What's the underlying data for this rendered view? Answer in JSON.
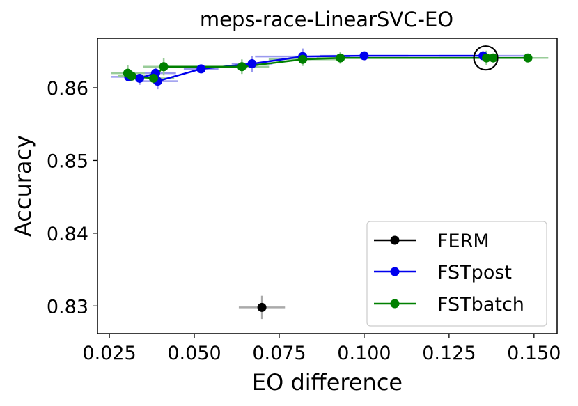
{
  "chart_data": {
    "type": "line",
    "title": "meps-race-LinearSVC-EO",
    "xlabel": "EO difference",
    "ylabel": "Accuracy",
    "xlim": [
      0.0215,
      0.1568
    ],
    "ylim": [
      0.8262,
      0.8668
    ],
    "xticks": [
      0.025,
      0.05,
      0.075,
      0.1,
      0.125,
      0.15
    ],
    "xtick_labels": [
      "0.025",
      "0.050",
      "0.075",
      "0.100",
      "0.125",
      "0.150"
    ],
    "yticks": [
      0.83,
      0.84,
      0.85,
      0.86
    ],
    "ytick_labels": [
      "0.83",
      "0.84",
      "0.85",
      "0.86"
    ],
    "legend_position": "lower-right",
    "highlight": {
      "x": 0.1358,
      "y": 0.8641,
      "description": "circled point"
    },
    "series": [
      {
        "name": "FERM",
        "color": "#000000",
        "error_color": "#aaaaaa",
        "line": false,
        "points": [
          {
            "x": 0.0699,
            "y": 0.8298,
            "xerr": 0.0068,
            "yerr": 0.0016
          }
        ]
      },
      {
        "name": "FSTpost",
        "color": "#0000ee",
        "error_color": "#9999ee",
        "line": true,
        "points": [
          {
            "x": 0.0307,
            "y": 0.8615,
            "xerr": 0.0052,
            "yerr": 0.0006
          },
          {
            "x": 0.0339,
            "y": 0.8613,
            "xerr": 0.004,
            "yerr": 0.0009
          },
          {
            "x": 0.0386,
            "y": 0.862,
            "xerr": 0.006,
            "yerr": 0.0007
          },
          {
            "x": 0.0392,
            "y": 0.8609,
            "xerr": 0.006,
            "yerr": 0.0011
          },
          {
            "x": 0.052,
            "y": 0.8626,
            "xerr": 0.0051,
            "yerr": 0.0006
          },
          {
            "x": 0.067,
            "y": 0.8633,
            "xerr": 0.006,
            "yerr": 0.0011
          },
          {
            "x": 0.0819,
            "y": 0.8643,
            "xerr": 0.014,
            "yerr": 0.0011
          },
          {
            "x": 0.1,
            "y": 0.8644,
            "xerr": 0.013,
            "yerr": 0.0004
          },
          {
            "x": 0.135,
            "y": 0.8644,
            "xerr": 0.013,
            "yerr": 0.0004
          }
        ]
      },
      {
        "name": "FSTbatch",
        "color": "#008000",
        "error_color": "#99cc99",
        "line": true,
        "points": [
          {
            "x": 0.0304,
            "y": 0.862,
            "xerr": 0.005,
            "yerr": 0.0011
          },
          {
            "x": 0.0316,
            "y": 0.8616,
            "xerr": 0.004,
            "yerr": 0.0007
          },
          {
            "x": 0.038,
            "y": 0.8613,
            "xerr": 0.0061,
            "yerr": 0.0008
          },
          {
            "x": 0.041,
            "y": 0.8629,
            "xerr": 0.006,
            "yerr": 0.0012
          },
          {
            "x": 0.064,
            "y": 0.8629,
            "xerr": 0.008,
            "yerr": 0.001
          },
          {
            "x": 0.0819,
            "y": 0.8639,
            "xerr": 0.01,
            "yerr": 0.0009
          },
          {
            "x": 0.093,
            "y": 0.8641,
            "xerr": 0.007,
            "yerr": 0.0008
          },
          {
            "x": 0.136,
            "y": 0.8641,
            "xerr": 0.004,
            "yerr": 0.001
          },
          {
            "x": 0.138,
            "y": 0.8641,
            "xerr": 0.006,
            "yerr": 0.0005
          },
          {
            "x": 0.1482,
            "y": 0.8641,
            "xerr": 0.006,
            "yerr": 0.0005
          }
        ]
      }
    ]
  }
}
